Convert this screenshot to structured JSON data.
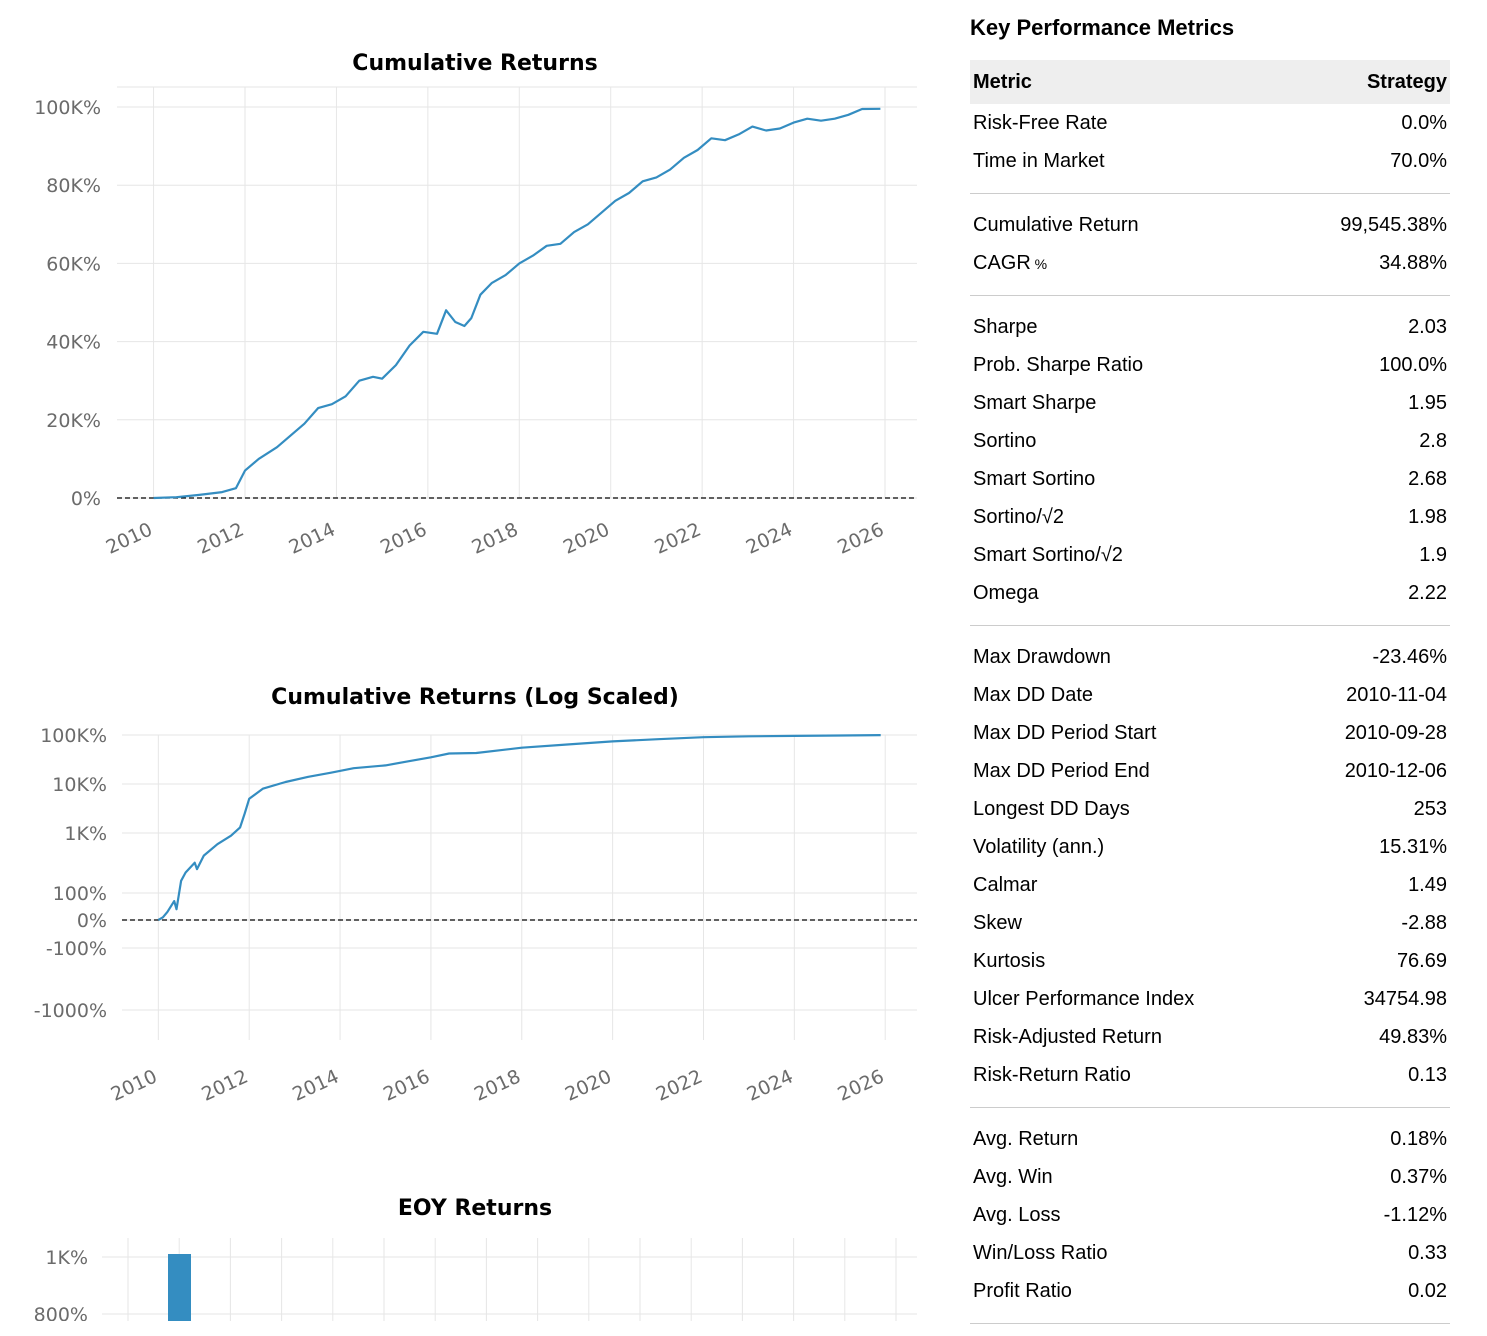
{
  "metrics": {
    "title": "Key Performance Metrics",
    "header": {
      "metric": "Metric",
      "strategy": "Strategy"
    },
    "groups": [
      [
        [
          "Risk-Free Rate",
          "0.0%"
        ],
        [
          "Time in Market",
          "70.0%"
        ]
      ],
      [
        [
          "Cumulative Return",
          "99,545.38%"
        ],
        [
          "CAGR",
          "34.88%",
          "%"
        ]
      ],
      [
        [
          "Sharpe",
          "2.03"
        ],
        [
          "Prob. Sharpe Ratio",
          "100.0%"
        ],
        [
          "Smart Sharpe",
          "1.95"
        ],
        [
          "Sortino",
          "2.8"
        ],
        [
          "Smart Sortino",
          "2.68"
        ],
        [
          "Sortino/√2",
          "1.98"
        ],
        [
          "Smart Sortino/√2",
          "1.9"
        ],
        [
          "Omega",
          "2.22"
        ]
      ],
      [
        [
          "Max Drawdown",
          "-23.46%"
        ],
        [
          "Max DD Date",
          "2010-11-04"
        ],
        [
          "Max DD Period Start",
          "2010-09-28"
        ],
        [
          "Max DD Period End",
          "2010-12-06"
        ],
        [
          "Longest DD Days",
          "253"
        ],
        [
          "Volatility (ann.)",
          "15.31%"
        ],
        [
          "Calmar",
          "1.49"
        ],
        [
          "Skew",
          "-2.88"
        ],
        [
          "Kurtosis",
          "76.69"
        ],
        [
          "Ulcer Performance Index",
          "34754.98"
        ],
        [
          "Risk-Adjusted Return",
          "49.83%"
        ],
        [
          "Risk-Return Ratio",
          "0.13"
        ]
      ],
      [
        [
          "Avg. Return",
          "0.18%"
        ],
        [
          "Avg. Win",
          "0.37%"
        ],
        [
          "Avg. Loss",
          "-1.12%"
        ],
        [
          "Win/Loss Ratio",
          "0.33"
        ],
        [
          "Profit Ratio",
          "0.02"
        ]
      ]
    ]
  },
  "chart_data": [
    {
      "type": "line",
      "title": "Cumulative Returns",
      "xlabel": "",
      "ylabel": "",
      "x_ticks": [
        "2010",
        "2012",
        "2014",
        "2016",
        "2018",
        "2020",
        "2022",
        "2024",
        "2026"
      ],
      "xlim": [
        2009.2,
        2026.7
      ],
      "y_ticks": [
        0,
        20000,
        40000,
        60000,
        80000,
        100000
      ],
      "y_tick_labels": [
        "0%",
        "20K%",
        "40K%",
        "60K%",
        "80K%",
        "100K%"
      ],
      "ylim": [
        0,
        100000
      ],
      "grid": true,
      "zero_line": "dashed",
      "series": [
        {
          "color": "#348dc1",
          "x": [
            2010.0,
            2010.5,
            2011.0,
            2011.5,
            2011.8,
            2012.0,
            2012.3,
            2012.7,
            2013.0,
            2013.3,
            2013.6,
            2013.9,
            2014.2,
            2014.5,
            2014.8,
            2015.0,
            2015.3,
            2015.6,
            2015.9,
            2016.2,
            2016.4,
            2016.6,
            2016.8,
            2016.95,
            2017.15,
            2017.4,
            2017.7,
            2018.0,
            2018.3,
            2018.6,
            2018.9,
            2019.2,
            2019.5,
            2019.8,
            2020.1,
            2020.4,
            2020.7,
            2021.0,
            2021.3,
            2021.6,
            2021.9,
            2022.2,
            2022.5,
            2022.8,
            2023.1,
            2023.4,
            2023.7,
            2024.0,
            2024.3,
            2024.6,
            2024.9,
            2025.2,
            2025.5,
            2025.9
          ],
          "y": [
            0,
            200,
            800,
            1500,
            2500,
            7000,
            10000,
            13000,
            16000,
            19000,
            23000,
            24000,
            26000,
            30000,
            31000,
            30500,
            34000,
            39000,
            42500,
            42000,
            48000,
            45000,
            44000,
            46000,
            52000,
            55000,
            57000,
            60000,
            62000,
            64500,
            65000,
            68000,
            70000,
            73000,
            76000,
            78000,
            81000,
            82000,
            84000,
            87000,
            89000,
            92000,
            91500,
            93000,
            95000,
            94000,
            94500,
            96000,
            97000,
            96500,
            97000,
            98000,
            99500,
            99545
          ]
        }
      ]
    },
    {
      "type": "line",
      "title": "Cumulative Returns (Log Scaled)",
      "xlabel": "",
      "ylabel": "",
      "x_ticks": [
        "2010",
        "2012",
        "2014",
        "2016",
        "2018",
        "2020",
        "2022",
        "2024",
        "2026"
      ],
      "xlim": [
        2009.2,
        2026.7
      ],
      "y_scale": "symlog",
      "y_ticks": [
        -1000,
        -100,
        0,
        100,
        1000,
        10000,
        100000
      ],
      "y_tick_labels": [
        "-1000%",
        "-100%",
        "0%",
        "100%",
        "1K%",
        "10K%",
        "100K%"
      ],
      "grid": true,
      "zero_line": "dashed",
      "series": [
        {
          "color": "#348dc1",
          "x": [
            2010.0,
            2010.1,
            2010.2,
            2010.35,
            2010.4,
            2010.5,
            2010.6,
            2010.8,
            2010.85,
            2011.0,
            2011.3,
            2011.6,
            2011.8,
            2011.9,
            2012.0,
            2012.3,
            2012.8,
            2013.3,
            2013.8,
            2014.3,
            2015.0,
            2015.5,
            2016.0,
            2016.4,
            2017.0,
            2018.0,
            2019.0,
            2020.0,
            2021.0,
            2022.0,
            2023.0,
            2024.0,
            2025.0,
            2025.9
          ],
          "y": [
            0,
            10,
            30,
            70,
            40,
            160,
            220,
            320,
            250,
            420,
            650,
            900,
            1300,
            2500,
            5000,
            8000,
            11000,
            14000,
            17000,
            21000,
            24000,
            29000,
            35000,
            42000,
            43000,
            55000,
            64000,
            74000,
            82000,
            90000,
            94000,
            96000,
            97500,
            99545
          ]
        }
      ]
    },
    {
      "type": "bar",
      "title": "EOY Returns",
      "xlabel": "",
      "ylabel": "",
      "y_ticks": [
        800,
        1000
      ],
      "y_tick_labels": [
        "800%",
        "1K%"
      ],
      "grid": true,
      "bars": [
        {
          "color": "#348dc1",
          "value": 1000
        }
      ]
    }
  ]
}
